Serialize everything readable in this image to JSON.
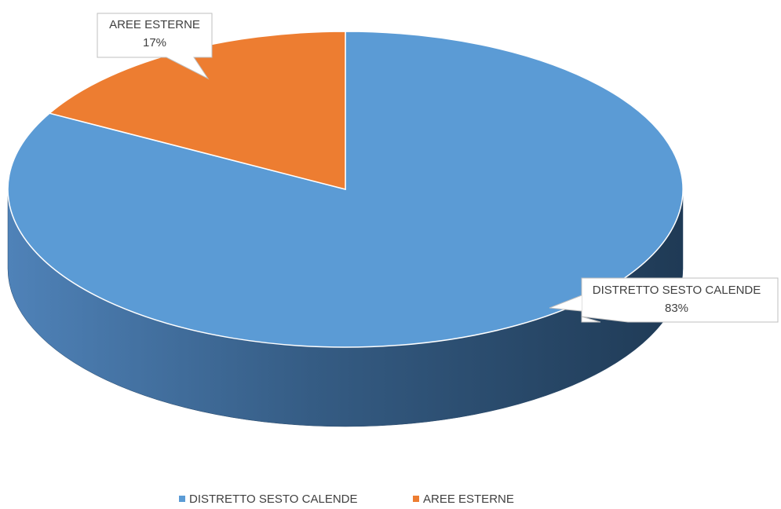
{
  "chart_data": {
    "type": "pie",
    "style": "3d",
    "categories": [
      "DISTRETTO SESTO CALENDE",
      "AREE ESTERNE"
    ],
    "values": [
      83,
      17
    ],
    "value_labels": [
      "83%",
      "17%"
    ],
    "colors": [
      "#5b9bd5",
      "#ed7d31"
    ],
    "legend_position": "bottom",
    "title": ""
  }
}
